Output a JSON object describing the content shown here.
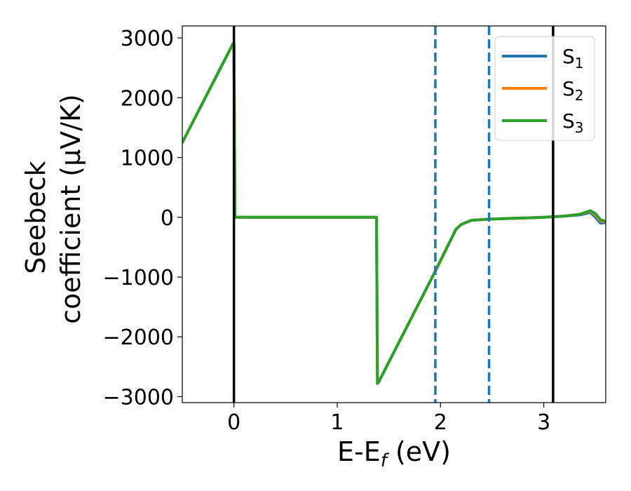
{
  "chart_data": {
    "type": "line",
    "xlabel": "E-E",
    "xlabel_sub": "f",
    "xlabel_unit": " (eV)",
    "ylabel_line1": "Seebeck",
    "ylabel_line2": "coefficient  (μV/K)",
    "xlim": [
      -0.5,
      3.6
    ],
    "ylim": [
      -3100,
      3200
    ],
    "xticks": [
      0,
      1,
      2,
      3
    ],
    "xtick_labels": [
      "0",
      "1",
      "2",
      "3"
    ],
    "yticks": [
      3000,
      2000,
      1000,
      0,
      -1000,
      -2000,
      -3000
    ],
    "ytick_labels": [
      "3000",
      "2000",
      "1000",
      "0",
      "−1000",
      "−2000",
      "−3000"
    ],
    "vlines": [
      {
        "x": 0.0,
        "style": "solid",
        "color": "#000000"
      },
      {
        "x": 3.09,
        "style": "solid",
        "color": "#000000"
      },
      {
        "x": 1.95,
        "style": "dashed",
        "color": "#1f77b4"
      },
      {
        "x": 2.47,
        "style": "dashed",
        "color": "#1f77b4"
      }
    ],
    "legend_position": "upper right",
    "series": [
      {
        "name": "S",
        "name_sub": "1",
        "color": "#1f77b4",
        "x": [
          -0.5,
          -0.01,
          0.0,
          0.01,
          1.38,
          1.39,
          1.4,
          1.95,
          2.15,
          2.2,
          2.3,
          2.5,
          3.0,
          3.2,
          3.35,
          3.45,
          3.5,
          3.55,
          3.6
        ],
        "y": [
          1250,
          2900,
          2900,
          0,
          0,
          -2780,
          -2760,
          -900,
          -200,
          -120,
          -50,
          -30,
          0,
          20,
          40,
          80,
          0,
          -100,
          -90
        ]
      },
      {
        "name": "S",
        "name_sub": "2",
        "color": "#ff7f0e",
        "x": [
          -0.5,
          -0.01,
          0.0,
          0.01,
          1.38,
          1.39,
          1.4,
          1.95,
          2.15,
          2.2,
          2.3,
          2.5,
          3.0,
          3.2,
          3.35,
          3.45,
          3.5,
          3.55,
          3.6
        ],
        "y": [
          1250,
          2900,
          2900,
          0,
          0,
          -2780,
          -2760,
          -900,
          -200,
          -120,
          -50,
          -30,
          0,
          20,
          50,
          100,
          40,
          -60,
          -80
        ]
      },
      {
        "name": "S",
        "name_sub": "3",
        "color": "#2ca02c",
        "x": [
          -0.5,
          -0.01,
          0.0,
          0.01,
          1.38,
          1.39,
          1.4,
          1.95,
          2.15,
          2.2,
          2.3,
          2.5,
          3.0,
          3.2,
          3.35,
          3.45,
          3.5,
          3.55,
          3.6
        ],
        "y": [
          1250,
          2900,
          2900,
          0,
          0,
          -2780,
          -2760,
          -900,
          -200,
          -120,
          -50,
          -30,
          0,
          20,
          50,
          110,
          60,
          -40,
          -70
        ]
      }
    ]
  }
}
